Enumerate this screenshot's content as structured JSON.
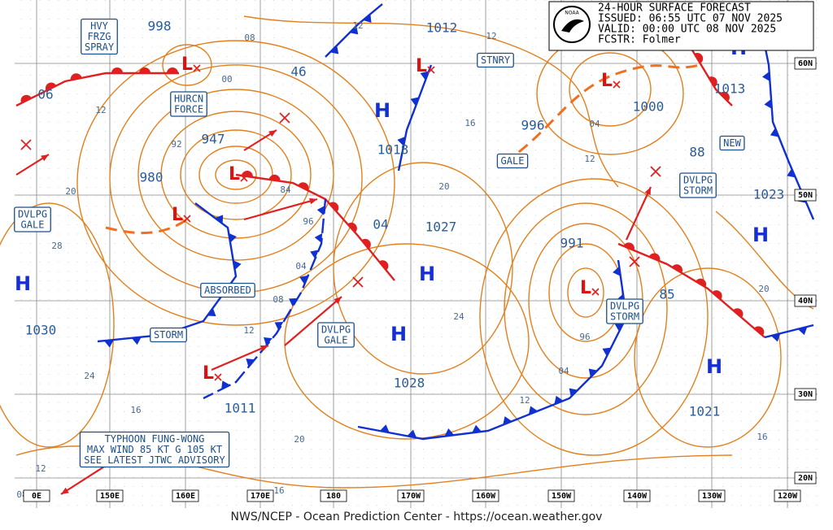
{
  "header": {
    "lines": [
      "24-HOUR SURFACE FORECAST",
      "ISSUED: 06:55 UTC 07 NOV 2025",
      "VALID:  00:00 UTC 08 NOV 2025",
      "FCSTR:  Folmer"
    ]
  },
  "logo": "NOAA",
  "footer": "NWS/NCEP - Ocean Prediction Center - https://ocean.weather.gov",
  "centers": [
    "H",
    "H",
    "H",
    "H",
    "H",
    "H",
    "H",
    "L",
    "L",
    "L",
    "L",
    "L",
    "L",
    "L"
  ],
  "pressures": [
    "998",
    "06",
    "947",
    "980",
    "46",
    "1012",
    "1018",
    "996",
    "1000",
    "1013",
    "88",
    "1023",
    "04",
    "1027",
    "991",
    "85",
    "1030",
    "1028",
    "1011",
    "1021"
  ],
  "isobar_labels": [
    "08",
    "00",
    "12",
    "92",
    "84",
    "96",
    "04",
    "08",
    "12",
    "20",
    "28",
    "24",
    "16",
    "20",
    "16",
    "12",
    "08",
    "12",
    "12",
    "16",
    "04",
    "12",
    "20",
    "24",
    "96",
    "04",
    "12",
    "16",
    "20"
  ],
  "warnings": [
    [
      "HVY",
      "FRZG",
      "SPRAY"
    ],
    [
      "HURCN",
      "FORCE"
    ],
    [
      "STNRY"
    ],
    [
      "GALE"
    ],
    [
      "NEW"
    ],
    [
      "DVLPG",
      "STORM"
    ],
    [
      "DVLPG",
      "GALE"
    ],
    [
      "ABSORBED"
    ],
    [
      "STORM"
    ],
    [
      "DVLPG",
      "GALE"
    ],
    [
      "DVLPG",
      "STORM"
    ],
    [
      "TYPHOON FUNG-WONG",
      "MAX WIND 85 KT G 105 KT",
      "SEE LATEST JTWC ADVISORY"
    ]
  ],
  "latitudes": [
    "60N",
    "50N",
    "40N",
    "30N",
    "20N"
  ],
  "longitudes": [
    "0E",
    "150E",
    "160E",
    "170E",
    "180",
    "170W",
    "160W",
    "150W",
    "140W",
    "130W",
    "120W"
  ]
}
